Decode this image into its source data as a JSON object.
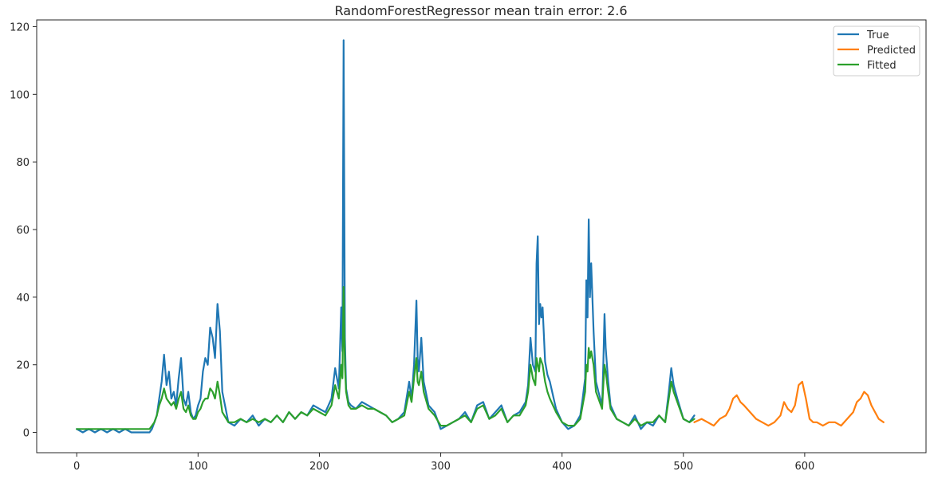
{
  "chart_data": {
    "type": "line",
    "title": "RandomForestRegressor mean train error: 2.6",
    "xlabel": "",
    "ylabel": "",
    "xlim": [
      -33,
      700
    ],
    "ylim": [
      -6,
      122
    ],
    "x_ticks": [
      0,
      100,
      200,
      300,
      400,
      500,
      600
    ],
    "y_ticks": [
      0,
      20,
      40,
      60,
      80,
      100,
      120
    ],
    "legend_position": "top-right",
    "grid": false,
    "series": [
      {
        "name": "True",
        "color": "#1f77b4",
        "x": [
          0,
          5,
          10,
          15,
          20,
          25,
          30,
          35,
          40,
          45,
          50,
          55,
          60,
          62,
          64,
          66,
          68,
          70,
          72,
          74,
          76,
          78,
          80,
          82,
          84,
          86,
          88,
          90,
          92,
          94,
          96,
          98,
          100,
          102,
          104,
          106,
          108,
          110,
          112,
          114,
          116,
          118,
          120,
          125,
          130,
          135,
          140,
          145,
          150,
          155,
          160,
          165,
          170,
          175,
          180,
          185,
          190,
          195,
          200,
          205,
          210,
          213,
          216,
          218,
          219,
          220,
          221,
          222,
          224,
          226,
          230,
          235,
          240,
          245,
          250,
          255,
          260,
          265,
          270,
          274,
          276,
          278,
          280,
          281,
          282,
          284,
          286,
          290,
          295,
          300,
          305,
          310,
          315,
          320,
          325,
          330,
          335,
          340,
          345,
          350,
          355,
          360,
          365,
          370,
          372,
          374,
          376,
          378,
          379,
          380,
          381,
          382,
          383,
          384,
          386,
          388,
          390,
          395,
          400,
          405,
          410,
          415,
          417,
          419,
          420,
          421,
          422,
          423,
          424,
          426,
          428,
          430,
          433,
          434,
          435,
          436,
          438,
          440,
          445,
          450,
          455,
          460,
          465,
          470,
          475,
          480,
          485,
          488,
          490,
          492,
          495,
          500,
          505,
          509
        ],
        "y": [
          1,
          0,
          1,
          0,
          1,
          0,
          1,
          0,
          1,
          0,
          0,
          0,
          0,
          1,
          3,
          5,
          10,
          15,
          23,
          14,
          18,
          10,
          12,
          8,
          16,
          22,
          10,
          8,
          12,
          6,
          4,
          5,
          8,
          10,
          18,
          22,
          20,
          31,
          28,
          22,
          38,
          30,
          12,
          3,
          2,
          4,
          3,
          5,
          2,
          4,
          3,
          5,
          3,
          6,
          4,
          6,
          5,
          8,
          7,
          6,
          10,
          19,
          13,
          37,
          24,
          116,
          28,
          13,
          9,
          8,
          7,
          9,
          8,
          7,
          6,
          5,
          3,
          4,
          6,
          15,
          10,
          20,
          39,
          22,
          18,
          28,
          15,
          8,
          6,
          1,
          2,
          3,
          4,
          6,
          3,
          8,
          9,
          4,
          6,
          8,
          3,
          5,
          6,
          9,
          14,
          28,
          20,
          18,
          50,
          58,
          32,
          38,
          34,
          37,
          21,
          17,
          15,
          7,
          3,
          1,
          2,
          5,
          10,
          16,
          45,
          34,
          63,
          40,
          50,
          30,
          15,
          12,
          8,
          20,
          35,
          25,
          15,
          8,
          4,
          3,
          2,
          5,
          1,
          3,
          2,
          5,
          3,
          12,
          19,
          14,
          10,
          4,
          3,
          5
        ]
      },
      {
        "name": "Predicted",
        "color": "#ff7f0e",
        "x": [
          509,
          515,
          520,
          525,
          530,
          535,
          538,
          541,
          544,
          547,
          550,
          555,
          560,
          565,
          570,
          575,
          580,
          583,
          586,
          589,
          592,
          595,
          598,
          601,
          604,
          607,
          610,
          615,
          620,
          625,
          630,
          635,
          640,
          643,
          646,
          649,
          652,
          655,
          658,
          661,
          665
        ],
        "y": [
          3,
          4,
          3,
          2,
          4,
          5,
          7,
          10,
          11,
          9,
          8,
          6,
          4,
          3,
          2,
          3,
          5,
          9,
          7,
          6,
          8,
          14,
          15,
          10,
          4,
          3,
          3,
          2,
          3,
          3,
          2,
          4,
          6,
          9,
          10,
          12,
          11,
          8,
          6,
          4,
          3
        ]
      },
      {
        "name": "Fitted",
        "color": "#2ca02c",
        "x": [
          0,
          5,
          10,
          15,
          20,
          25,
          30,
          35,
          40,
          45,
          50,
          55,
          60,
          62,
          64,
          66,
          68,
          70,
          72,
          74,
          76,
          78,
          80,
          82,
          84,
          86,
          88,
          90,
          92,
          94,
          96,
          98,
          100,
          102,
          104,
          106,
          108,
          110,
          112,
          114,
          116,
          118,
          120,
          125,
          130,
          135,
          140,
          145,
          150,
          155,
          160,
          165,
          170,
          175,
          180,
          185,
          190,
          195,
          200,
          205,
          210,
          213,
          216,
          218,
          219,
          220,
          221,
          222,
          224,
          226,
          230,
          235,
          240,
          245,
          250,
          255,
          260,
          265,
          270,
          274,
          276,
          278,
          280,
          281,
          282,
          284,
          286,
          290,
          295,
          300,
          305,
          310,
          315,
          320,
          325,
          330,
          335,
          340,
          345,
          350,
          355,
          360,
          365,
          370,
          372,
          374,
          376,
          378,
          379,
          380,
          381,
          382,
          383,
          384,
          386,
          388,
          390,
          395,
          400,
          405,
          410,
          415,
          417,
          419,
          420,
          421,
          422,
          423,
          424,
          426,
          428,
          430,
          433,
          434,
          435,
          436,
          438,
          440,
          445,
          450,
          455,
          460,
          465,
          470,
          475,
          480,
          485,
          488,
          490,
          492,
          495,
          500,
          505,
          509
        ],
        "y": [
          1,
          1,
          1,
          1,
          1,
          1,
          1,
          1,
          1,
          1,
          1,
          1,
          1,
          2,
          3,
          5,
          8,
          10,
          13,
          10,
          9,
          8,
          9,
          7,
          10,
          12,
          7,
          6,
          8,
          5,
          4,
          4,
          6,
          7,
          9,
          10,
          10,
          13,
          12,
          10,
          15,
          11,
          6,
          3,
          3,
          4,
          3,
          4,
          3,
          4,
          3,
          5,
          3,
          6,
          4,
          6,
          5,
          7,
          6,
          5,
          8,
          14,
          10,
          20,
          16,
          43,
          20,
          12,
          8,
          7,
          7,
          8,
          7,
          7,
          6,
          5,
          3,
          4,
          5,
          12,
          9,
          16,
          22,
          15,
          14,
          18,
          12,
          7,
          5,
          2,
          2,
          3,
          4,
          5,
          3,
          7,
          8,
          4,
          5,
          7,
          3,
          5,
          5,
          8,
          12,
          20,
          16,
          14,
          22,
          20,
          18,
          22,
          21,
          20,
          15,
          12,
          10,
          6,
          3,
          2,
          2,
          4,
          8,
          12,
          20,
          18,
          25,
          22,
          24,
          20,
          12,
          10,
          7,
          14,
          20,
          18,
          12,
          7,
          4,
          3,
          2,
          4,
          2,
          3,
          3,
          5,
          3,
          10,
          15,
          12,
          9,
          4,
          3,
          4
        ]
      }
    ]
  }
}
